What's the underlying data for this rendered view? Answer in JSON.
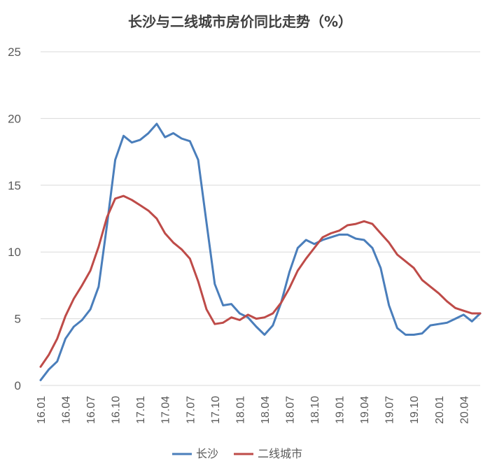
{
  "chart_data": {
    "type": "line",
    "title": "长沙与二线城市房价同比走势（%）",
    "xlabel": "",
    "ylabel": "",
    "ylim": [
      0,
      25
    ],
    "yticks": [
      0,
      5,
      10,
      15,
      20,
      25
    ],
    "grid": true,
    "legend_position": "bottom",
    "x_tick_labels": [
      "16.01",
      "16.04",
      "16.07",
      "16.10",
      "17.01",
      "17.04",
      "17.07",
      "17.10",
      "18.01",
      "18.04",
      "18.07",
      "18.10",
      "19.01",
      "19.04",
      "19.07",
      "19.10",
      "20.01",
      "20.04"
    ],
    "x_tick_every": 3,
    "series": [
      {
        "name": "长沙",
        "color": "#4a7ebb",
        "values": [
          0.4,
          1.2,
          1.8,
          3.5,
          4.4,
          4.9,
          5.7,
          7.4,
          12.0,
          16.9,
          18.7,
          18.2,
          18.4,
          18.9,
          19.6,
          18.6,
          18.9,
          18.5,
          18.3,
          16.9,
          12.2,
          7.6,
          6.0,
          6.1,
          5.4,
          5.1,
          4.4,
          3.8,
          4.5,
          6.2,
          8.5,
          10.3,
          10.9,
          10.6,
          10.9,
          11.1,
          11.3,
          11.3,
          11.0,
          10.9,
          10.3,
          8.8,
          6.0,
          4.3,
          3.8,
          3.8,
          3.9,
          4.5,
          4.6,
          4.7,
          5.0,
          5.3,
          4.8,
          5.4
        ]
      },
      {
        "name": "二线城市",
        "color": "#be4b48",
        "values": [
          1.4,
          2.3,
          3.5,
          5.2,
          6.5,
          7.5,
          8.6,
          10.4,
          12.6,
          14.0,
          14.2,
          13.9,
          13.5,
          13.1,
          12.5,
          11.4,
          10.7,
          10.2,
          9.5,
          7.8,
          5.7,
          4.6,
          4.7,
          5.1,
          4.9,
          5.3,
          5.0,
          5.1,
          5.4,
          6.2,
          7.3,
          8.6,
          9.5,
          10.3,
          11.1,
          11.4,
          11.6,
          12.0,
          12.1,
          12.3,
          12.1,
          11.4,
          10.7,
          9.8,
          9.3,
          8.8,
          7.9,
          7.4,
          6.9,
          6.3,
          5.8,
          5.6,
          5.4,
          5.4
        ]
      }
    ]
  }
}
